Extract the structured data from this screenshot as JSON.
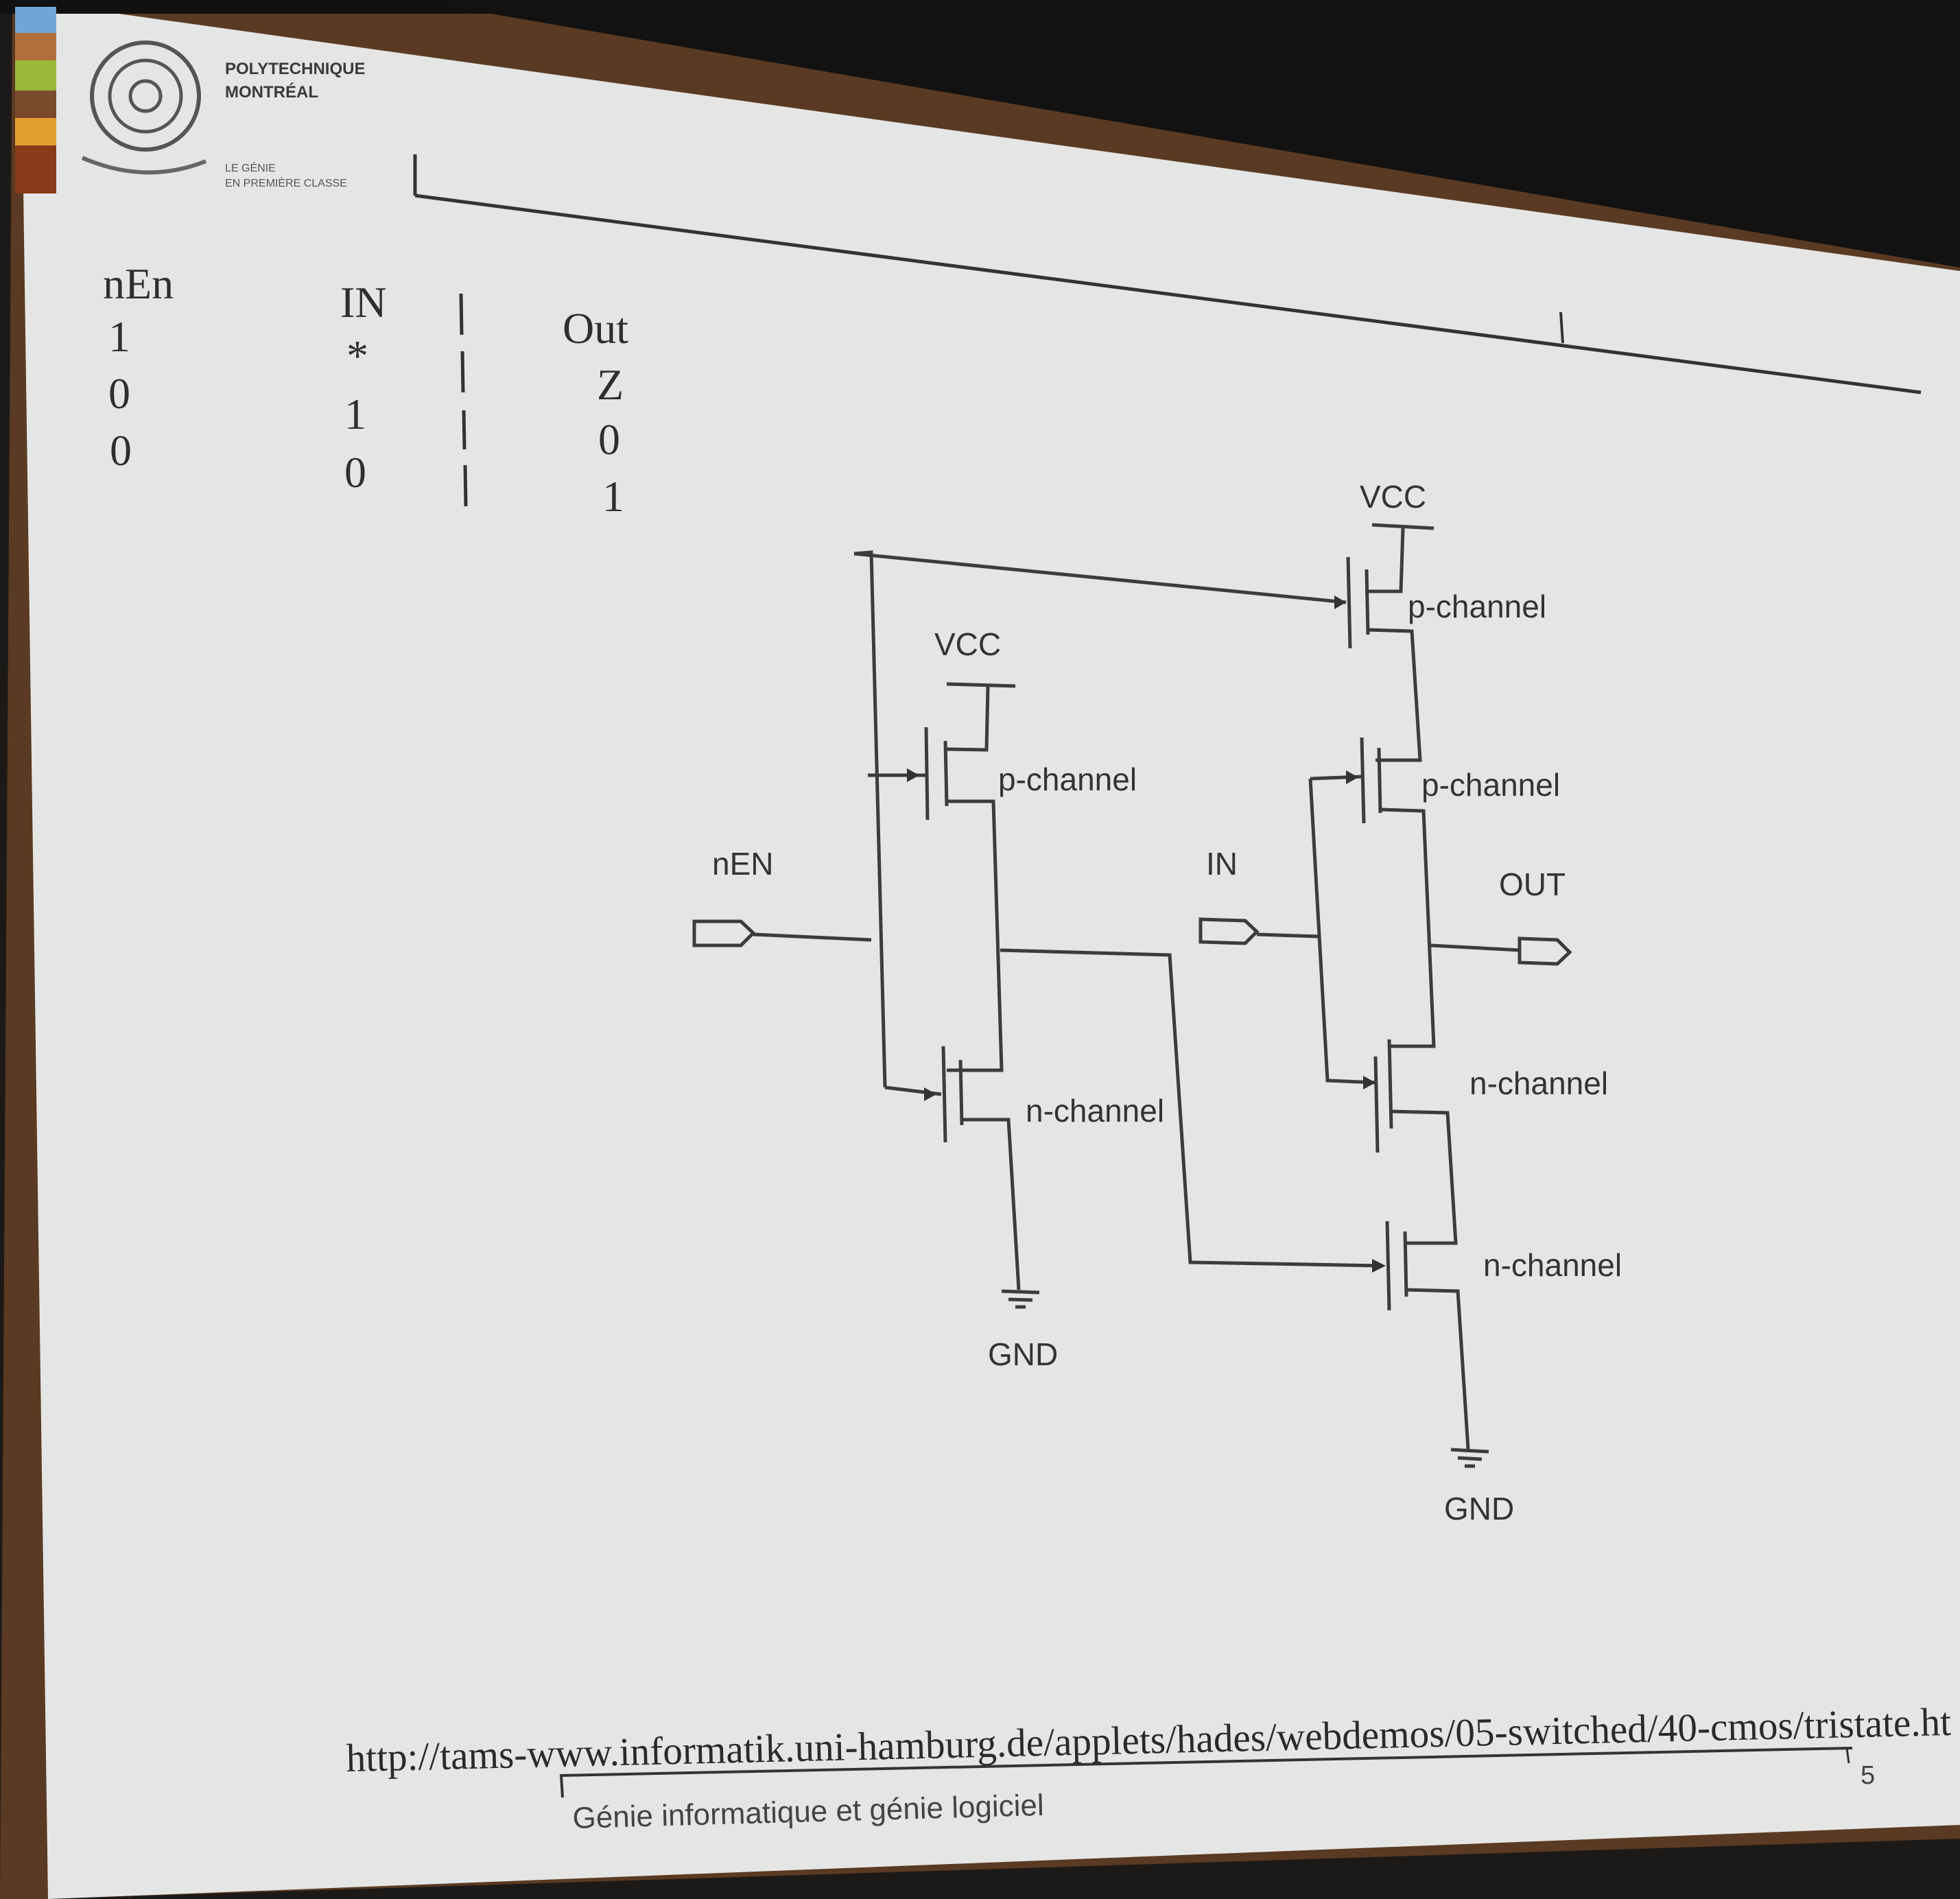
{
  "header": {
    "logo_line1": "POLYTECHNIQUE",
    "logo_line2": "MONTRÉAL",
    "tagline_line1": "LE GÉNIE",
    "tagline_line2": "EN PREMIÈRE CLASSE"
  },
  "truth_table": {
    "headers": [
      "nEn",
      "IN",
      "Out"
    ],
    "rows": [
      [
        "1",
        "*",
        "Z"
      ],
      [
        "0",
        "1",
        "0"
      ],
      [
        "0",
        "0",
        "1"
      ]
    ]
  },
  "diagram": {
    "vcc_left": "VCC",
    "vcc_right": "VCC",
    "gnd_left": "GND",
    "gnd_right": "GND",
    "port_nen": "nEN",
    "port_in": "IN",
    "port_out": "OUT",
    "pch_inv": "p-channel",
    "nch_inv": "n-channel",
    "pch_top": "p-channel",
    "pch_mid": "p-channel",
    "nch_mid": "n-channel",
    "nch_bot": "n-channel"
  },
  "footer": {
    "url": "http://tams-www.informatik.uni-hamburg.de/applets/hades/webdemos/05-switched/40-cmos/tristate.ht",
    "course": "Génie informatique et génie logiciel",
    "page": "5"
  },
  "colors": {
    "slide": "#e6e8e8",
    "frame": "#1a1a1a",
    "stripe": [
      "#6fa6d6",
      "#b06a3a",
      "#9ab83a",
      "#7a4a2a",
      "#e0a030",
      "#8a3a1a"
    ]
  }
}
